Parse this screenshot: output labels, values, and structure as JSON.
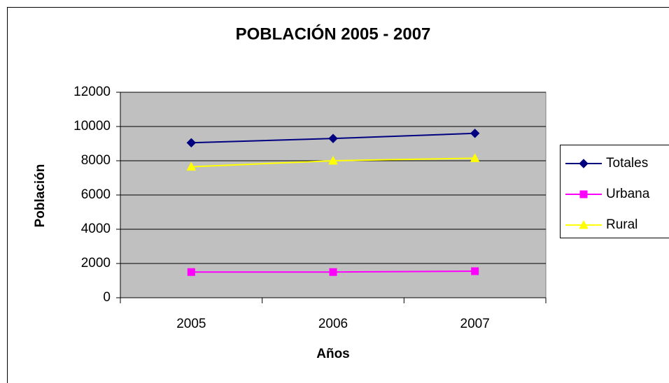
{
  "chart_data": {
    "type": "line",
    "title": "POBLACIÓN 2005 - 2007",
    "x_label": "Años",
    "y_label": "Población",
    "categories": [
      "2005",
      "2006",
      "2007"
    ],
    "series": [
      {
        "name": "Totales",
        "color": "#000080",
        "marker": "diamond",
        "values": [
          9050,
          9300,
          9600
        ]
      },
      {
        "name": "Urbana",
        "color": "#ff00ff",
        "marker": "square",
        "values": [
          1500,
          1500,
          1550
        ]
      },
      {
        "name": "Rural",
        "color": "#ffff00",
        "marker": "triangle",
        "values": [
          7650,
          8000,
          8150
        ]
      }
    ],
    "ylim": [
      0,
      12000
    ],
    "yticks": [
      0,
      2000,
      4000,
      6000,
      8000,
      10000,
      12000
    ],
    "grid": true,
    "legend": "right"
  }
}
